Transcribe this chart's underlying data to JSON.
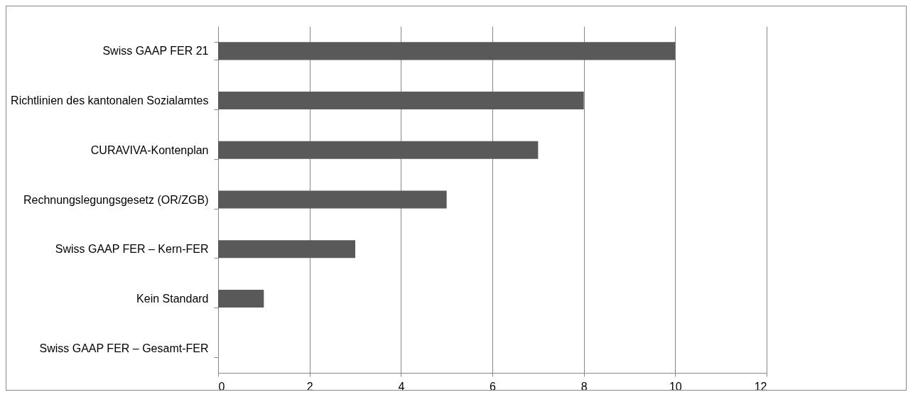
{
  "chart_data": {
    "type": "bar",
    "orientation": "horizontal",
    "categories": [
      "Swiss GAAP FER 21",
      "Richtlinien des kantonalen Sozialamtes",
      "CURAVIVA-Kontenplan",
      "Rechnungslegungsgesetz (OR/ZGB)",
      "Swiss GAAP FER – Kern-FER",
      "Kein Standard",
      "Swiss GAAP FER – Gesamt-FER"
    ],
    "values": [
      10,
      8,
      7,
      5,
      3,
      1,
      0
    ],
    "color": "#595959",
    "xlim": [
      0,
      12
    ],
    "xticks": [
      0,
      2,
      4,
      6,
      8,
      10,
      12
    ],
    "grid": "x"
  }
}
